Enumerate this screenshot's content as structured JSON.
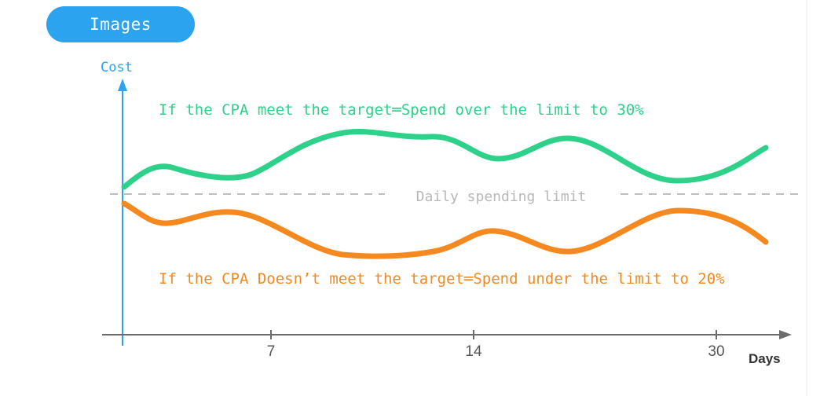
{
  "badge": {
    "label": "Images"
  },
  "diagram": {
    "y_axis_label": "Cost",
    "x_axis_label": "Days",
    "x_ticks": [
      "7",
      "14",
      "30"
    ],
    "limit_label": "Daily spending limit",
    "over_label": "If the CPA meet the target═Spend over the limit to 30%",
    "under_label": "If the CPA Doesn’t meet the target═Spend under the limit to 20%",
    "colors": {
      "axis_y": "#2ba3ee",
      "axis_x": "#6b6b6b",
      "over": "#2ed18a",
      "under": "#f5891f",
      "limit": "#bdbdbd",
      "badge": "#2ba3ee"
    }
  }
}
